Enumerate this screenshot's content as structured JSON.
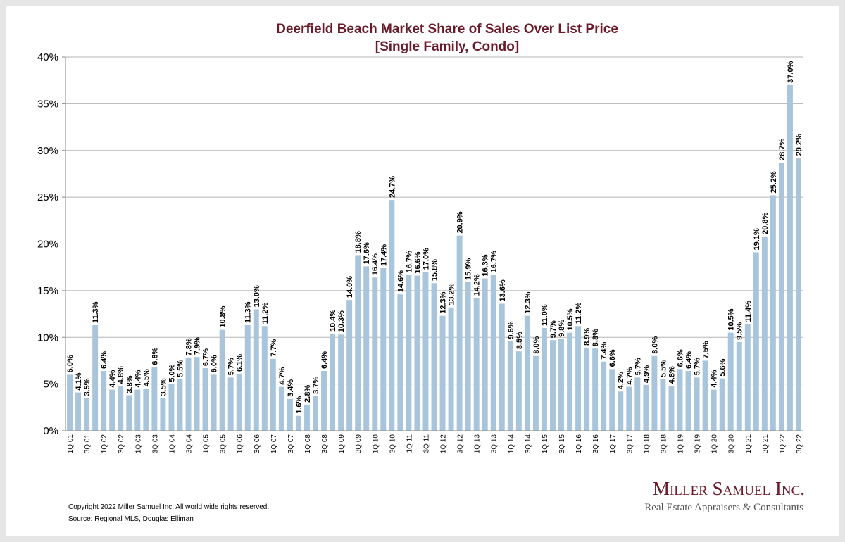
{
  "chart_data": {
    "type": "bar",
    "title": "Deerfield Beach Market Share of Sales Over List Price",
    "subtitle": "[Single Family, Condo]",
    "categories": [
      "1Q 01",
      null,
      "3Q 01",
      null,
      "1Q 02",
      null,
      "3Q 02",
      null,
      "1Q 03",
      null,
      "3Q 03",
      null,
      "1Q 04",
      null,
      "3Q 04",
      null,
      "1Q 05",
      null,
      "3Q 05",
      null,
      "1Q 06",
      null,
      "3Q 06",
      null,
      "1Q 07",
      null,
      "3Q 07",
      null,
      "1Q 08",
      null,
      "3Q 08",
      null,
      "1Q 09",
      null,
      "3Q 09",
      null,
      "1Q 10",
      null,
      "3Q 10",
      null,
      "1Q 11",
      null,
      "3Q 11",
      null,
      "1Q 12",
      null,
      "3Q 12",
      null,
      "1Q 13",
      null,
      "3Q 13",
      null,
      "1Q 14",
      null,
      "3Q 14",
      null,
      "1Q 15",
      null,
      "3Q 15",
      null,
      "1Q 16",
      null,
      "3Q 16",
      null,
      "1Q 17",
      null,
      "3Q 17",
      null,
      "1Q 18",
      null,
      "3Q 18",
      null,
      "1Q 19",
      null,
      "3Q 19",
      null,
      "1Q 20",
      null,
      "3Q 20",
      null,
      "1Q 21",
      null,
      "3Q 21",
      null,
      "1Q 22",
      null,
      "3Q 22"
    ],
    "values": [
      6.0,
      4.1,
      3.5,
      11.3,
      6.4,
      4.4,
      4.8,
      3.8,
      4.4,
      4.5,
      6.8,
      3.5,
      5.0,
      5.5,
      7.8,
      7.9,
      6.7,
      6.0,
      10.8,
      5.7,
      6.1,
      11.3,
      13.0,
      11.2,
      7.7,
      4.7,
      3.4,
      1.6,
      2.8,
      3.7,
      6.4,
      10.4,
      10.3,
      14.0,
      18.8,
      17.6,
      16.4,
      17.4,
      24.7,
      14.6,
      16.7,
      16.6,
      17.0,
      15.8,
      12.3,
      13.2,
      20.9,
      15.9,
      14.2,
      16.3,
      16.7,
      13.6,
      9.6,
      8.5,
      12.3,
      8.0,
      11.0,
      9.7,
      9.8,
      10.5,
      11.2,
      8.9,
      8.8,
      7.4,
      6.6,
      4.2,
      4.7,
      5.7,
      4.9,
      8.0,
      5.5,
      4.8,
      6.6,
      6.4,
      5.7,
      7.5,
      4.4,
      5.6,
      10.5,
      9.5,
      11.4,
      19.1,
      20.8,
      25.2,
      28.7,
      37.0,
      29.2
    ],
    "value_labels": [
      "6.0%",
      "4.1%",
      "3.5%",
      "11.3%",
      "6.4%",
      "4.4%",
      "4.8%",
      "3.8%",
      "4.4%",
      "4.5%",
      "6.8%",
      "3.5%",
      "5.0%",
      "5.5%",
      "7.8%",
      "7.9%",
      "6.7%",
      "6.0%",
      "10.8%",
      "5.7%",
      "6.1%",
      "11.3%",
      "13.0%",
      "11.2%",
      "7.7%",
      "4.7%",
      "3.4%",
      "1.6%",
      "2.8%",
      "3.7%",
      "6.4%",
      "10.4%",
      "10.3%",
      "14.0%",
      "18.8%",
      "17.6%",
      "16.4%",
      "17.4%",
      "24.7%",
      "14.6%",
      "16.7%",
      "16.6%",
      "17.0%",
      "15.8%",
      "12.3%",
      "13.2%",
      "20.9%",
      "15.9%",
      "14.2%",
      "16.3%",
      "16.7%",
      "13.6%",
      "9.6%",
      "8.5%",
      "12.3%",
      "8.0%",
      "11.0%",
      "9.7%",
      "9.8%",
      "10.5%",
      "11.2%",
      "8.9%",
      "8.8%",
      "7.4%",
      "6.6%",
      "4.2%",
      "4.7%",
      "5.7%",
      "4.9%",
      "8.0%",
      "5.5%",
      "4.8%",
      "6.6%",
      "6.4%",
      "5.7%",
      "7.5%",
      "4.4%",
      "5.6%",
      "10.5%",
      "9.5%",
      "11.4%",
      "19.1%",
      "20.8%",
      "25.2%",
      "28.7%",
      "37.0%",
      "29.2%"
    ],
    "color": "#a9c5dc",
    "ylim": [
      0,
      40
    ],
    "yticks": [
      {
        "value": 0,
        "label": "0%"
      },
      {
        "value": 5,
        "label": "5%"
      },
      {
        "value": 10,
        "label": "10%"
      },
      {
        "value": 15,
        "label": "15%"
      },
      {
        "value": 20,
        "label": "20%"
      },
      {
        "value": 25,
        "label": "25%"
      },
      {
        "value": 30,
        "label": "30%"
      },
      {
        "value": 35,
        "label": "35%"
      },
      {
        "value": 40,
        "label": "40%"
      }
    ],
    "grid": true
  },
  "footer": {
    "copyright": "Copyright 2022 Miller Samuel Inc.  All world wide rights reserved.",
    "source": "Source: Regional MLS, Douglas Elliman",
    "brand": "Miller Samuel Inc.",
    "tagline": "Real Estate Appraisers & Consultants"
  }
}
